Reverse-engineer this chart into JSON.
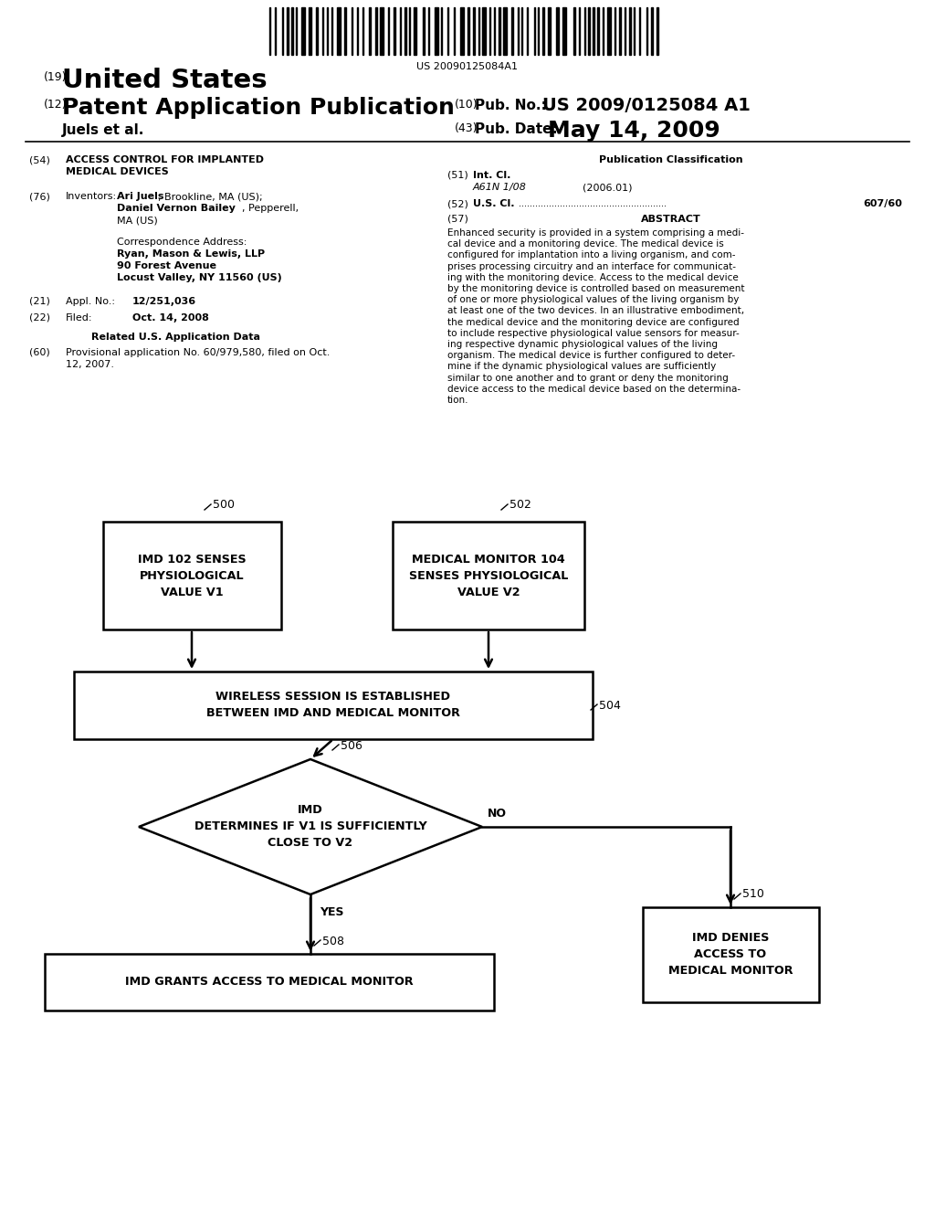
{
  "bg_color": "#ffffff",
  "barcode_text": "US 20090125084A1",
  "header": {
    "line1_num": "(19)",
    "line1_text": "United States",
    "line2_num": "(12)",
    "line2_text": "Patent Application Publication",
    "line2_right_num": "(10)",
    "line2_right_label": "Pub. No.:",
    "line2_right_val": "US 2009/0125084 A1",
    "line3_left": "Juels et al.",
    "line3_right_num": "(43)",
    "line3_right_label": "Pub. Date:",
    "line3_right_val": "May 14, 2009"
  },
  "right_col": {
    "pub_class_title": "Publication Classification",
    "int_cl_num": "(51)",
    "int_cl_label": "Int. Cl.",
    "int_cl_val": "A61N 1/08",
    "int_cl_year": "(2006.01)",
    "us_cl_num": "(52)",
    "us_cl_label": "U.S. Cl.",
    "us_cl_val": "607/60",
    "abstract_num": "(57)",
    "abstract_title": "ABSTRACT",
    "abstract_text": "Enhanced security is provided in a system comprising a medi-cal device and a monitoring device. The medical device is configured for implantation into a living organism, and com-prises processing circuitry and an interface for communicat-ing with the monitoring device. Access to the medical device by the monitoring device is controlled based on measurement of one or more physiological values of the living organism by at least one of the two devices. In an illustrative embodiment, the medical device and the monitoring device are configured to include respective physiological value sensors for measur-ing respective dynamic physiological values of the living organism. The medical device is further configured to deter-mine if the dynamic physiological values are sufficiently similar to one another and to grant or deny the monitoring device access to the medical device based on the determina-tion."
  },
  "flowchart": {
    "box500_label": "IMD 102 SENSES\nPHYSIOLOGICAL\nVALUE V1",
    "box500_num": "500",
    "box502_label": "MEDICAL MONITOR 104\nSENSES PHYSIOLOGICAL\nVALUE V2",
    "box502_num": "502",
    "box504_label": "WIRELESS SESSION IS ESTABLISHED\nBETWEEN IMD AND MEDICAL MONITOR",
    "box504_num": "504",
    "diamond506_label": "IMD\nDETERMINES IF V1 IS SUFFICIENTLY\nCLOSE TO V2",
    "diamond506_num": "506",
    "box508_label": "IMD GRANTS ACCESS TO MEDICAL MONITOR",
    "box508_num": "508",
    "box510_label": "IMD DENIES\nACCESS TO\nMEDICAL MONITOR",
    "box510_num": "510",
    "yes_label": "YES",
    "no_label": "NO"
  }
}
